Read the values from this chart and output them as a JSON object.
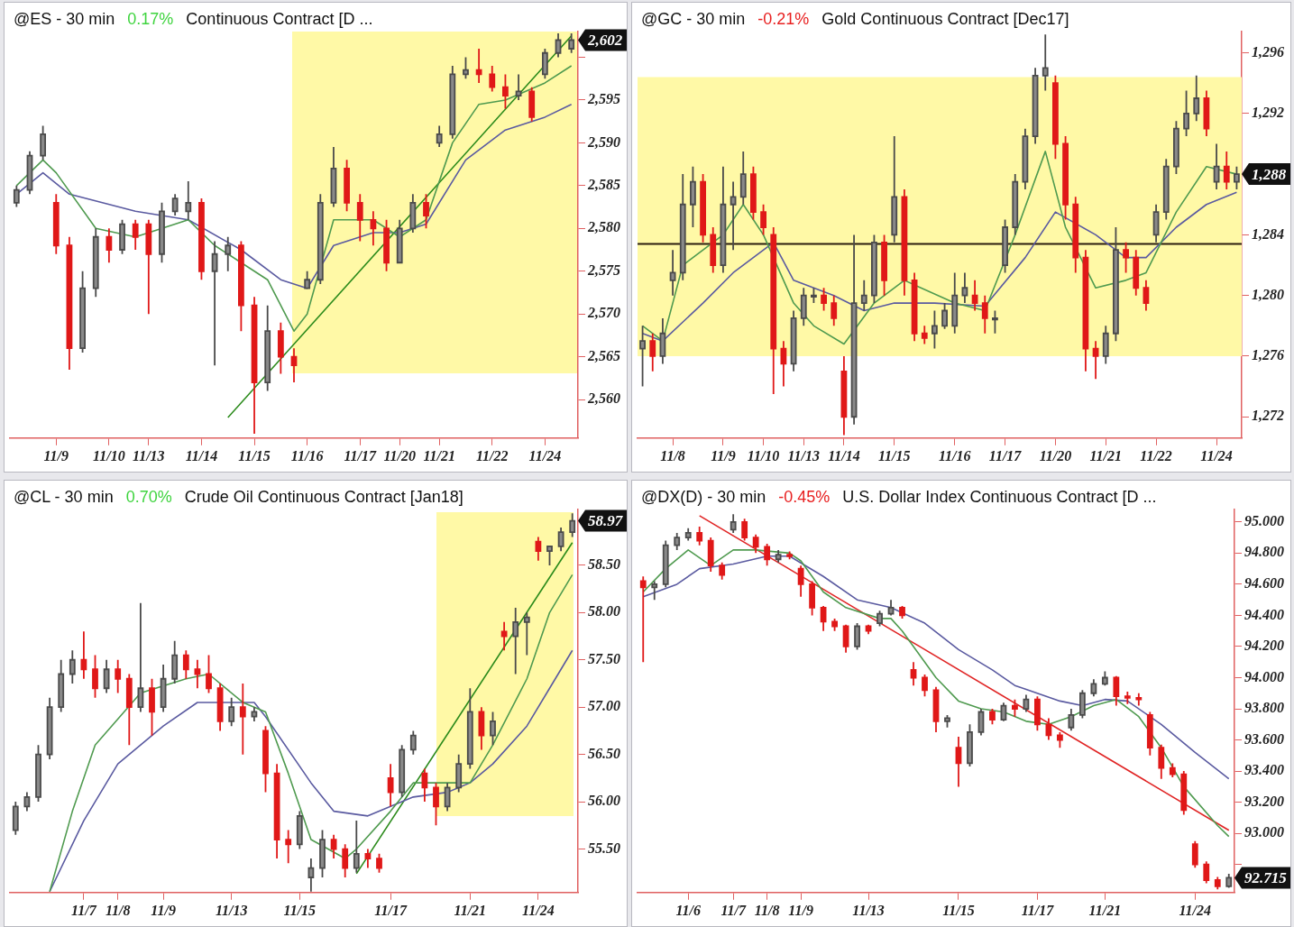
{
  "chart_data": [
    {
      "type": "candlestick",
      "title": "@ES - 30 min",
      "subtitle": "0.17%",
      "annotations": [
        "Continuous Contract [D ...",
        "2,602"
      ],
      "categories": [
        null,
        null,
        null,
        "11/9",
        null,
        null,
        null,
        "11/10",
        null,
        null,
        "11/13",
        null,
        null,
        null,
        "11/14",
        null,
        null,
        null,
        "11/15",
        null,
        null,
        null,
        "11/16",
        null,
        null,
        null,
        "11/17",
        null,
        null,
        "11/20",
        null,
        null,
        "11/21",
        null,
        null,
        null,
        "11/22",
        null,
        null,
        null,
        "11/24",
        null,
        null
      ],
      "ylim": [
        2555.5,
        2603
      ],
      "yticks": [
        {
          "value": 2560,
          "label": "2,560"
        },
        {
          "value": 2565,
          "label": "2,565"
        },
        {
          "value": 2570,
          "label": "2,570"
        },
        {
          "value": 2575,
          "label": "2,575"
        },
        {
          "value": 2580,
          "label": "2,580"
        },
        {
          "value": 2585,
          "label": "2,585"
        },
        {
          "value": 2590,
          "label": "2,590"
        },
        {
          "value": 2595,
          "label": "2,595"
        },
        {
          "value": 2600,
          "label": null
        }
      ],
      "ohlc": [
        [
          2583,
          2585,
          2582.5,
          2584.5
        ],
        [
          2584.5,
          2589,
          2584,
          2588.5
        ],
        [
          2588.5,
          2592,
          2588,
          2591
        ],
        [
          2583,
          2584,
          2577,
          2578
        ],
        [
          2578,
          2579,
          2563.5,
          2566
        ],
        [
          2566,
          2575,
          2565.5,
          2573
        ],
        [
          2573,
          2580,
          2572,
          2579
        ],
        [
          2579,
          2580,
          2576,
          2577.5
        ],
        [
          2577.5,
          2581,
          2577,
          2580.5
        ],
        [
          2580.5,
          2581,
          2577.5,
          2579
        ],
        [
          2580.5,
          2581,
          2570,
          2577
        ],
        [
          2577,
          2583,
          2576,
          2582
        ],
        [
          2582,
          2584,
          2581.5,
          2583.5
        ],
        [
          2582,
          2585.5,
          2581,
          2583
        ],
        [
          2583,
          2583.5,
          2574,
          2575
        ],
        [
          2575,
          2578.5,
          2564,
          2577
        ],
        [
          2577,
          2579,
          2575,
          2578
        ],
        [
          2578,
          2578.5,
          2568,
          2571
        ],
        [
          2571,
          2572,
          2556,
          2562
        ],
        [
          2562,
          2571,
          2561,
          2568
        ],
        [
          2568,
          2569,
          2563,
          2565
        ],
        [
          2565,
          2566,
          2562,
          2564
        ],
        [
          2573,
          2575,
          2573,
          2574
        ],
        [
          2574,
          2584,
          2573.5,
          2583
        ],
        [
          2583,
          2589.5,
          2582.5,
          2587
        ],
        [
          2587,
          2588,
          2582,
          2583
        ],
        [
          2583,
          2584,
          2578.5,
          2581
        ],
        [
          2581,
          2582,
          2578,
          2580
        ],
        [
          2580,
          2581,
          2575,
          2576
        ],
        [
          2576,
          2581,
          2576,
          2580
        ],
        [
          2580,
          2584,
          2579.5,
          2583
        ],
        [
          2583,
          2584,
          2580,
          2581.5
        ],
        [
          2590,
          2592,
          2589.5,
          2591
        ],
        [
          2591,
          2599,
          2590.5,
          2598
        ],
        [
          2598,
          2600,
          2597.5,
          2598.5
        ],
        [
          2598.5,
          2601,
          2597,
          2598
        ],
        [
          2598,
          2599,
          2596,
          2596.5
        ],
        [
          2596.5,
          2598,
          2594,
          2595.5
        ],
        [
          2595.5,
          2598,
          2595,
          2596
        ],
        [
          2596,
          2596.5,
          2592.5,
          2593
        ],
        [
          2598,
          2601,
          2597.5,
          2600.5
        ],
        [
          2600.5,
          2602.8,
          2600,
          2602
        ],
        [
          2601,
          2602.8,
          2600.5,
          2602
        ]
      ],
      "series": [
        {
          "type": "line",
          "color": "#4f9a4f",
          "values": [
            2585,
            null,
            2588,
            2586.5,
            null,
            null,
            2580,
            null,
            null,
            2579,
            null,
            null,
            null,
            2581,
            null,
            2578,
            null,
            null,
            null,
            2574,
            null,
            2568,
            2570,
            null,
            2581,
            null,
            null,
            2581,
            null,
            2579,
            null,
            2581,
            null,
            2590,
            null,
            2594.5,
            null,
            2595,
            null,
            null,
            2597,
            null,
            2599
          ]
        },
        {
          "type": "line",
          "color": "#5a5aa0",
          "values": [
            2584,
            null,
            2586.5,
            null,
            2584,
            null,
            null,
            null,
            null,
            2582,
            null,
            null,
            null,
            2581,
            null,
            null,
            null,
            2577.5,
            null,
            null,
            2574,
            null,
            2573,
            null,
            2578,
            null,
            null,
            2579.5,
            null,
            2579.5,
            null,
            2580.5,
            null,
            null,
            2588,
            null,
            null,
            2591.5,
            null,
            null,
            2593,
            null,
            2594.5
          ]
        },
        {
          "type": "line",
          "color": "#2a8a1a",
          "values": [
            null,
            null,
            null,
            null,
            null,
            null,
            null,
            null,
            null,
            null,
            null,
            null,
            null,
            null,
            null,
            null,
            2557.9,
            null,
            null,
            null,
            null,
            null,
            null,
            null,
            null,
            null,
            null,
            null,
            null,
            null,
            null,
            null,
            null,
            null,
            null,
            null,
            null,
            null,
            null,
            null,
            null,
            null,
            2602.5
          ]
        }
      ]
    },
    {
      "type": "candlestick",
      "title": "@GC - 30 min",
      "subtitle": "-0.21%",
      "annotations": [
        "Gold Continuous Contract [Dec17]",
        "1,288"
      ],
      "categories": [
        null,
        null,
        null,
        "11/8",
        null,
        null,
        null,
        null,
        "11/9",
        null,
        null,
        null,
        "11/10",
        null,
        null,
        null,
        "11/13",
        null,
        null,
        null,
        "11/14",
        null,
        null,
        null,
        null,
        "11/15",
        null,
        null,
        null,
        null,
        null,
        "11/16",
        null,
        null,
        null,
        null,
        "11/17",
        null,
        null,
        null,
        null,
        "11/20",
        null,
        null,
        null,
        null,
        "11/21",
        null,
        null,
        null,
        null,
        "11/22",
        null,
        null,
        null,
        null,
        null,
        "11/24",
        null,
        null
      ],
      "ylim": [
        1270.6,
        1297.4
      ],
      "yticks": [
        {
          "value": 1272,
          "label": "1,272"
        },
        {
          "value": 1276,
          "label": "1,276"
        },
        {
          "value": 1280,
          "label": "1,280"
        },
        {
          "value": 1284,
          "label": "1,284"
        },
        {
          "value": 1288,
          "label": null
        },
        {
          "value": 1292,
          "label": "1,292"
        },
        {
          "value": 1296,
          "label": "1,296"
        }
      ],
      "bands": [
        {
          "axis": "y",
          "from": 1276,
          "to": 1294.4,
          "color": "#fff9a6"
        }
      ],
      "ref_lines": [
        {
          "axis": "y",
          "value": 1283.4,
          "color": "#2b1d0e"
        }
      ],
      "ohlc": [
        [
          1276.5,
          1278,
          1274,
          1277
        ],
        [
          1277,
          1277.5,
          1275,
          1276
        ],
        [
          1276,
          1278.5,
          1275.5,
          1277.5
        ],
        [
          1281,
          1283,
          1280,
          1281.5
        ],
        [
          1281.5,
          1288,
          1281,
          1286
        ],
        [
          1286,
          1288.5,
          1284.5,
          1287.5
        ],
        [
          1287.5,
          1288,
          1283.5,
          1284
        ],
        [
          1284,
          1284.5,
          1281.5,
          1282
        ],
        [
          1282,
          1288.5,
          1281.5,
          1286
        ],
        [
          1286,
          1287.5,
          1283,
          1286.5
        ],
        [
          1286.5,
          1289.5,
          1286,
          1288
        ],
        [
          1288,
          1288.5,
          1285,
          1285.5
        ],
        [
          1285.5,
          1286,
          1284,
          1284.5
        ],
        [
          1284,
          1284.5,
          1273.5,
          1276.5
        ],
        [
          1276.5,
          1277,
          1274,
          1275.5
        ],
        [
          1275.5,
          1279,
          1275,
          1278.5
        ],
        [
          1278.5,
          1280.5,
          1278,
          1280
        ],
        [
          1280,
          1280.5,
          1279.5,
          1280
        ],
        [
          1280,
          1280.5,
          1279,
          1279.5
        ],
        [
          1279.5,
          1280,
          1278,
          1278.5
        ],
        [
          1275,
          1276,
          1270.8,
          1272
        ],
        [
          1272,
          1284,
          1271.5,
          1279.5
        ],
        [
          1279.5,
          1281,
          1279,
          1280
        ],
        [
          1280,
          1284,
          1279.5,
          1283.5
        ],
        [
          1283.5,
          1284,
          1280,
          1281
        ],
        [
          1284,
          1290.5,
          1283.5,
          1286.5
        ],
        [
          1286.5,
          1287,
          1280,
          1281
        ],
        [
          1281,
          1281.5,
          1277,
          1277.5
        ],
        [
          1277.5,
          1278,
          1276.8,
          1277.2
        ],
        [
          1277.5,
          1279,
          1276.5,
          1278
        ],
        [
          1278,
          1279.5,
          1277.8,
          1279
        ],
        [
          1278,
          1281.5,
          1277.5,
          1280
        ],
        [
          1280,
          1281.5,
          1279.5,
          1280.5
        ],
        [
          1280,
          1281,
          1279,
          1279.5
        ],
        [
          1279.5,
          1280,
          1277.5,
          1278.5
        ],
        [
          1278.5,
          1279,
          1277.5,
          1278.5
        ],
        [
          1282,
          1285,
          1281.5,
          1284.5
        ],
        [
          1284.5,
          1288,
          1284,
          1287.5
        ],
        [
          1287.5,
          1291,
          1287,
          1290.5
        ],
        [
          1290.5,
          1295,
          1290,
          1294.5
        ],
        [
          1294.5,
          1297.2,
          1293.5,
          1295
        ],
        [
          1294,
          1294.5,
          1289,
          1290
        ],
        [
          1290,
          1290.5,
          1285,
          1286
        ],
        [
          1286,
          1286.5,
          1281.5,
          1282.5
        ],
        [
          1282.5,
          1283,
          1275,
          1276.5
        ],
        [
          1276.5,
          1277,
          1274.5,
          1276
        ],
        [
          1276,
          1278,
          1275.5,
          1277.5
        ],
        [
          1277.5,
          1284.5,
          1277,
          1283
        ],
        [
          1283,
          1283.5,
          1281.5,
          1282.5
        ],
        [
          1282.5,
          1283,
          1280,
          1280.5
        ],
        [
          1280.5,
          1281,
          1279,
          1279.5
        ],
        [
          1284,
          1286,
          1283.5,
          1285.5
        ],
        [
          1285.5,
          1289,
          1285,
          1288.5
        ],
        [
          1288.5,
          1291.5,
          1288,
          1291
        ],
        [
          1291,
          1293.5,
          1290.5,
          1292
        ],
        [
          1292,
          1294.5,
          1291.5,
          1293
        ],
        [
          1293,
          1293.5,
          1290.5,
          1291
        ],
        [
          1287.5,
          1290,
          1287,
          1288.5
        ],
        [
          1288.5,
          1289.5,
          1287,
          1287.5
        ],
        [
          1287.5,
          1288.5,
          1287,
          1288
        ]
      ],
      "series": [
        {
          "type": "line",
          "color": "#4f9a4f",
          "values": [
            1278,
            null,
            1277,
            null,
            1282,
            null,
            null,
            null,
            1284,
            null,
            1286,
            null,
            1284,
            null,
            null,
            1279.5,
            null,
            1278,
            null,
            null,
            1276.8,
            null,
            null,
            1279.5,
            null,
            null,
            1281,
            null,
            null,
            null,
            null,
            1279.5,
            null,
            null,
            1279,
            null,
            null,
            1284,
            null,
            null,
            1289.5,
            null,
            1284.5,
            null,
            null,
            1280.5,
            null,
            null,
            1281,
            null,
            1281.5,
            null,
            null,
            1285.5,
            null,
            null,
            1288.5,
            null,
            null,
            1288
          ]
        },
        {
          "type": "line",
          "color": "#5a5aa0",
          "values": [
            1277.5,
            null,
            1277,
            null,
            null,
            null,
            1279.5,
            null,
            null,
            1281.5,
            null,
            null,
            null,
            1283.5,
            null,
            1281,
            null,
            null,
            null,
            1280,
            null,
            null,
            1279,
            null,
            null,
            1279.5,
            null,
            null,
            null,
            1279.5,
            null,
            null,
            null,
            null,
            1279.3,
            null,
            null,
            null,
            1282.5,
            null,
            null,
            1285.5,
            null,
            null,
            null,
            1284,
            null,
            null,
            1282.5,
            null,
            1282.5,
            null,
            null,
            1284.5,
            null,
            null,
            1286,
            null,
            null,
            1286.8
          ]
        }
      ]
    },
    {
      "type": "candlestick",
      "title": "@CL - 30 min",
      "subtitle": "0.70%",
      "annotations": [
        "Crude Oil Continuous Contract [Jan18]",
        "58.97"
      ],
      "categories": [
        null,
        null,
        null,
        null,
        null,
        null,
        "11/7",
        null,
        null,
        "11/8",
        null,
        null,
        null,
        "11/9",
        null,
        null,
        null,
        null,
        null,
        "11/13",
        null,
        null,
        null,
        null,
        null,
        "11/15",
        null,
        null,
        null,
        null,
        null,
        null,
        null,
        "11/17",
        null,
        null,
        null,
        null,
        null,
        null,
        "11/21",
        null,
        null,
        null,
        null,
        null,
        "11/24",
        null,
        null,
        null
      ],
      "ylim": [
        55.04,
        59.09
      ],
      "yticks": [
        {
          "value": 55.5,
          "label": "55.50"
        },
        {
          "value": 56,
          "label": "56.00"
        },
        {
          "value": 56.5,
          "label": "56.50"
        },
        {
          "value": 57,
          "label": "57.00"
        },
        {
          "value": 57.5,
          "label": "57.50"
        },
        {
          "value": 58,
          "label": "58.00"
        },
        {
          "value": 58.5,
          "label": "58.50"
        }
      ],
      "ohlc": [
        [
          55.7,
          56.0,
          55.65,
          55.95
        ],
        [
          55.95,
          56.1,
          55.9,
          56.05
        ],
        [
          56.05,
          56.6,
          56.0,
          56.5
        ],
        [
          56.5,
          57.1,
          56.45,
          57.0
        ],
        [
          57.0,
          57.5,
          56.95,
          57.35
        ],
        [
          57.35,
          57.6,
          57.25,
          57.5
        ],
        [
          57.5,
          57.8,
          57.3,
          57.4
        ],
        [
          57.4,
          57.55,
          57.1,
          57.2
        ],
        [
          57.2,
          57.5,
          57.15,
          57.4
        ],
        [
          57.4,
          57.5,
          57.15,
          57.3
        ],
        [
          57.3,
          57.35,
          56.6,
          57.0
        ],
        [
          57.0,
          58.1,
          56.95,
          57.2
        ],
        [
          57.2,
          57.3,
          56.7,
          56.95
        ],
        [
          57.0,
          57.45,
          56.95,
          57.3
        ],
        [
          57.3,
          57.7,
          57.25,
          57.55
        ],
        [
          57.55,
          57.6,
          57.3,
          57.4
        ],
        [
          57.4,
          57.5,
          57.2,
          57.35
        ],
        [
          57.35,
          57.55,
          57.15,
          57.2
        ],
        [
          57.2,
          57.25,
          56.75,
          56.85
        ],
        [
          56.85,
          57.1,
          56.8,
          57.0
        ],
        [
          57.0,
          57.25,
          56.5,
          56.9
        ],
        [
          56.9,
          57.0,
          56.85,
          56.95
        ],
        [
          56.75,
          56.8,
          56.1,
          56.3
        ],
        [
          56.3,
          56.4,
          55.4,
          55.6
        ],
        [
          55.6,
          55.7,
          55.35,
          55.55
        ],
        [
          55.55,
          55.9,
          55.5,
          55.85
        ],
        [
          55.2,
          55.4,
          55.05,
          55.3
        ],
        [
          55.3,
          55.7,
          55.2,
          55.6
        ],
        [
          55.6,
          55.65,
          55.4,
          55.5
        ],
        [
          55.5,
          55.55,
          55.2,
          55.3
        ],
        [
          55.3,
          55.8,
          55.25,
          55.45
        ],
        [
          55.45,
          55.5,
          55.3,
          55.4
        ],
        [
          55.4,
          55.45,
          55.25,
          55.3
        ],
        [
          56.25,
          56.4,
          55.95,
          56.1
        ],
        [
          56.1,
          56.6,
          56.05,
          56.55
        ],
        [
          56.55,
          56.75,
          56.5,
          56.7
        ],
        [
          56.3,
          56.35,
          56.0,
          56.15
        ],
        [
          56.15,
          56.2,
          55.75,
          55.95
        ],
        [
          55.95,
          56.2,
          55.9,
          56.15
        ],
        [
          56.15,
          56.5,
          56.1,
          56.4
        ],
        [
          56.4,
          57.2,
          56.35,
          56.95
        ],
        [
          56.95,
          57.0,
          56.55,
          56.7
        ],
        [
          56.7,
          56.95,
          56.6,
          56.85
        ],
        [
          57.8,
          57.9,
          57.6,
          57.75
        ],
        [
          57.75,
          58.05,
          57.35,
          57.9
        ],
        [
          57.9,
          58.0,
          57.55,
          57.95
        ],
        [
          58.75,
          58.8,
          58.55,
          58.65
        ],
        [
          58.65,
          58.7,
          58.5,
          58.7
        ],
        [
          58.7,
          58.9,
          58.65,
          58.85
        ],
        [
          58.85,
          59.05,
          58.8,
          58.97
        ]
      ],
      "series": [
        {
          "type": "line",
          "color": "#4f9a4f",
          "values": [
            null,
            null,
            null,
            55.05,
            null,
            55.9,
            null,
            56.6,
            null,
            null,
            null,
            57.15,
            null,
            null,
            null,
            57.3,
            null,
            57.35,
            null,
            null,
            57.05,
            null,
            56.95,
            null,
            56.3,
            null,
            55.6,
            null,
            null,
            55.4,
            55.5,
            null,
            null,
            55.9,
            null,
            56.2,
            null,
            null,
            56.2,
            null,
            56.2,
            null,
            56.6,
            null,
            null,
            57.3,
            null,
            58.0,
            null,
            58.4
          ]
        },
        {
          "type": "line",
          "color": "#5a5aa0",
          "values": [
            null,
            null,
            null,
            55.05,
            null,
            null,
            55.8,
            null,
            null,
            56.4,
            null,
            null,
            null,
            56.8,
            null,
            null,
            57.05,
            null,
            null,
            null,
            null,
            57.05,
            56.9,
            null,
            null,
            null,
            56.2,
            null,
            55.9,
            null,
            null,
            55.85,
            null,
            null,
            null,
            56.05,
            null,
            null,
            56.1,
            null,
            56.2,
            null,
            56.4,
            null,
            null,
            56.8,
            null,
            57.2,
            null,
            57.6
          ]
        },
        {
          "type": "line",
          "color": "#2a8a1a",
          "values": [
            null,
            null,
            null,
            null,
            null,
            null,
            null,
            null,
            null,
            null,
            null,
            null,
            null,
            null,
            null,
            null,
            null,
            null,
            null,
            null,
            null,
            null,
            null,
            null,
            null,
            null,
            null,
            null,
            null,
            null,
            55.24,
            null,
            null,
            null,
            null,
            null,
            null,
            null,
            null,
            null,
            null,
            null,
            null,
            null,
            null,
            null,
            null,
            null,
            null,
            58.74
          ]
        }
      ]
    },
    {
      "type": "candlestick",
      "title": "@DX(D) - 30 min",
      "subtitle": "-0.45%",
      "annotations": [
        "U.S. Dollar Index Continuous Contract [D ...",
        "92.715"
      ],
      "categories": [
        null,
        null,
        null,
        null,
        "11/6",
        null,
        null,
        null,
        "11/7",
        null,
        null,
        "11/8",
        null,
        null,
        "11/9",
        null,
        null,
        null,
        null,
        null,
        "11/13",
        null,
        null,
        null,
        null,
        null,
        null,
        null,
        "11/15",
        null,
        null,
        null,
        null,
        null,
        null,
        "11/17",
        null,
        null,
        null,
        null,
        null,
        "11/21",
        null,
        null,
        null,
        null,
        null,
        null,
        null,
        "11/24",
        null,
        null,
        null
      ],
      "ylim": [
        92.62,
        95.08
      ],
      "yticks": [
        {
          "value": 92.8,
          "label": null
        },
        {
          "value": 93,
          "label": "93.000"
        },
        {
          "value": 93.2,
          "label": "93.200"
        },
        {
          "value": 93.4,
          "label": "93.400"
        },
        {
          "value": 93.6,
          "label": "93.600"
        },
        {
          "value": 93.8,
          "label": "93.800"
        },
        {
          "value": 94,
          "label": "94.000"
        },
        {
          "value": 94.2,
          "label": "94.200"
        },
        {
          "value": 94.4,
          "label": "94.400"
        },
        {
          "value": 94.6,
          "label": "94.600"
        },
        {
          "value": 94.8,
          "label": "94.800"
        },
        {
          "value": 95,
          "label": "95.000"
        }
      ],
      "ohlc": [
        [
          94.62,
          94.65,
          94.1,
          94.58
        ],
        [
          94.58,
          94.62,
          94.5,
          94.6
        ],
        [
          94.6,
          94.88,
          94.58,
          94.85
        ],
        [
          94.85,
          94.93,
          94.82,
          94.9
        ],
        [
          94.9,
          94.96,
          94.88,
          94.93
        ],
        [
          94.93,
          94.97,
          94.85,
          94.88
        ],
        [
          94.88,
          94.9,
          94.68,
          94.72
        ],
        [
          94.72,
          94.74,
          94.63,
          94.66
        ],
        [
          94.95,
          95.05,
          94.93,
          95.0
        ],
        [
          95.0,
          95.02,
          94.88,
          94.9
        ],
        [
          94.9,
          94.92,
          94.8,
          94.84
        ],
        [
          94.84,
          94.86,
          94.72,
          94.76
        ],
        [
          94.76,
          94.82,
          94.74,
          94.79
        ],
        [
          94.79,
          94.81,
          94.76,
          94.78
        ],
        [
          94.7,
          94.72,
          94.52,
          94.6
        ],
        [
          94.6,
          94.62,
          94.4,
          94.45
        ],
        [
          94.45,
          94.46,
          94.3,
          94.36
        ],
        [
          94.36,
          94.38,
          94.3,
          94.33
        ],
        [
          94.33,
          94.34,
          94.16,
          94.2
        ],
        [
          94.2,
          94.35,
          94.18,
          94.33
        ],
        [
          94.33,
          94.34,
          94.28,
          94.3
        ],
        [
          94.35,
          94.43,
          94.33,
          94.41
        ],
        [
          94.41,
          94.5,
          94.4,
          94.45
        ],
        [
          94.45,
          94.46,
          94.38,
          94.4
        ],
        [
          94.05,
          94.1,
          93.95,
          94.0
        ],
        [
          94.0,
          94.02,
          93.88,
          93.92
        ],
        [
          93.92,
          93.94,
          93.65,
          93.72
        ],
        [
          93.72,
          93.76,
          93.68,
          93.74
        ],
        [
          93.55,
          93.62,
          93.3,
          93.45
        ],
        [
          93.45,
          93.7,
          93.43,
          93.65
        ],
        [
          93.65,
          93.8,
          93.63,
          93.78
        ],
        [
          93.78,
          93.8,
          93.7,
          93.73
        ],
        [
          93.73,
          93.84,
          93.72,
          93.82
        ],
        [
          93.82,
          93.86,
          93.75,
          93.8
        ],
        [
          93.8,
          93.89,
          93.78,
          93.86
        ],
        [
          93.86,
          93.88,
          93.66,
          93.7
        ],
        [
          93.7,
          93.74,
          93.6,
          93.63
        ],
        [
          93.63,
          93.65,
          93.55,
          93.6
        ],
        [
          93.68,
          93.8,
          93.66,
          93.76
        ],
        [
          93.76,
          93.92,
          93.74,
          93.9
        ],
        [
          93.9,
          93.99,
          93.88,
          93.96
        ],
        [
          93.96,
          94.04,
          93.95,
          94.0
        ],
        [
          94.0,
          94.01,
          93.82,
          93.88
        ],
        [
          93.88,
          93.91,
          93.83,
          93.87
        ],
        [
          93.87,
          93.9,
          93.82,
          93.86
        ],
        [
          93.76,
          93.78,
          93.5,
          93.55
        ],
        [
          93.55,
          93.57,
          93.35,
          93.42
        ],
        [
          93.42,
          93.45,
          93.36,
          93.38
        ],
        [
          93.38,
          93.4,
          93.12,
          93.15
        ],
        [
          92.93,
          92.95,
          92.78,
          92.8
        ],
        [
          92.8,
          92.82,
          92.68,
          92.7
        ],
        [
          92.7,
          92.72,
          92.64,
          92.66
        ],
        [
          92.66,
          92.74,
          92.65,
          92.715
        ]
      ],
      "series": [
        {
          "type": "line",
          "color": "#4f9a4f",
          "values": [
            94.55,
            null,
            94.7,
            null,
            94.82,
            null,
            94.72,
            null,
            94.82,
            null,
            94.82,
            null,
            null,
            94.8,
            94.75,
            null,
            94.55,
            null,
            94.45,
            null,
            null,
            94.38,
            94.38,
            94.3,
            null,
            null,
            94.0,
            null,
            93.85,
            null,
            93.8,
            null,
            93.78,
            null,
            93.72,
            null,
            93.7,
            null,
            93.75,
            null,
            93.82,
            null,
            93.86,
            null,
            93.75,
            null,
            93.55,
            null,
            93.3,
            null,
            null,
            93.05,
            92.98
          ]
        },
        {
          "type": "line",
          "color": "#5a5aa0",
          "values": [
            94.52,
            null,
            null,
            94.6,
            null,
            94.7,
            null,
            null,
            94.73,
            null,
            null,
            94.78,
            null,
            94.78,
            null,
            null,
            94.65,
            null,
            null,
            94.5,
            null,
            null,
            94.45,
            null,
            null,
            94.35,
            null,
            null,
            94.18,
            null,
            null,
            94.05,
            null,
            93.95,
            null,
            null,
            null,
            93.85,
            null,
            93.82,
            null,
            93.86,
            null,
            93.85,
            null,
            null,
            93.7,
            null,
            null,
            93.52,
            null,
            null,
            93.35
          ]
        },
        {
          "type": "line",
          "color": "#e02424",
          "values": [
            null,
            null,
            null,
            null,
            null,
            95.04,
            null,
            null,
            null,
            null,
            null,
            null,
            null,
            null,
            null,
            null,
            null,
            null,
            null,
            null,
            null,
            null,
            null,
            null,
            null,
            null,
            null,
            null,
            null,
            null,
            null,
            null,
            null,
            null,
            null,
            null,
            null,
            null,
            null,
            null,
            null,
            null,
            null,
            null,
            null,
            null,
            null,
            null,
            null,
            null,
            null,
            null,
            93.02
          ]
        }
      ]
    }
  ]
}
